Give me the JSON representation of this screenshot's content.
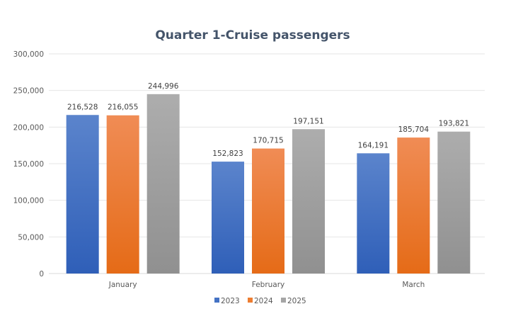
{
  "chart_data": {
    "type": "bar",
    "title": "Quarter 1-Cruise passengers",
    "xlabel": "",
    "ylabel": "",
    "categories": [
      "January",
      "February",
      "March"
    ],
    "series": [
      {
        "name": "2023",
        "color": "#4472c4",
        "values": [
          216528,
          152823,
          164191
        ],
        "labels": [
          "216,528",
          "152,823",
          "164,191"
        ]
      },
      {
        "name": "2024",
        "color": "#ed7d31",
        "values": [
          216055,
          170715,
          185704
        ],
        "labels": [
          "216,055",
          "170,715",
          "185,704"
        ]
      },
      {
        "name": "2025",
        "color": "#a5a5a5",
        "values": [
          244996,
          197151,
          193821
        ],
        "labels": [
          "244,996",
          "197,151",
          "193,821"
        ]
      }
    ],
    "ylim": [
      0,
      300000
    ],
    "yticks": [
      0,
      50000,
      100000,
      150000,
      200000,
      250000,
      300000
    ],
    "ytick_labels": [
      "0",
      "50,000",
      "100,000",
      "150,000",
      "200,000",
      "250,000",
      "300,000"
    ],
    "grid": true,
    "legend": "bottom",
    "data_labels": true
  }
}
